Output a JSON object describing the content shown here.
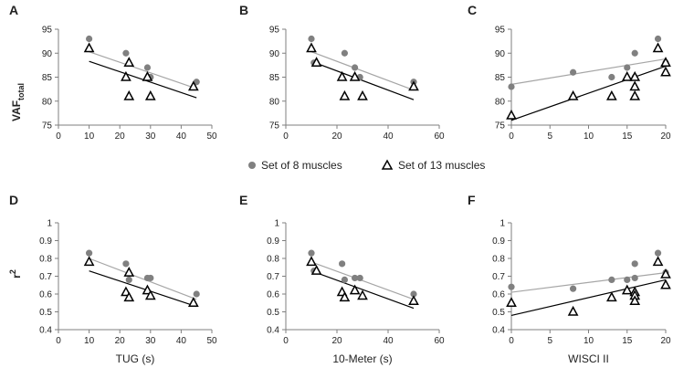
{
  "legend": {
    "series8_label": "Set of 8 muscles",
    "series13_label": "Set of 13 muscles"
  },
  "colors": {
    "series8": "#808080",
    "series13": "#000000",
    "line8": "#a6a6a6",
    "line13": "#000000",
    "axis": "#7f7f7f"
  },
  "ylabels": {
    "top_main": "VAF",
    "top_sub": "total",
    "bottom_main": "r",
    "bottom_sup": "2"
  },
  "chart_data": [
    {
      "id": "A",
      "type": "scatter",
      "row": "top",
      "xlim": [
        0,
        50
      ],
      "xticks": [
        0,
        10,
        20,
        30,
        40,
        50
      ],
      "ylim": [
        75,
        95
      ],
      "yticks": [
        75,
        80,
        85,
        90,
        95
      ],
      "xlabel": "",
      "ylabel": "VAF_total",
      "series": [
        {
          "name": "Set of 8 muscles",
          "marker": "circle",
          "points": [
            [
              10,
              93
            ],
            [
              22,
              90
            ],
            [
              29,
              87
            ],
            [
              30,
              85
            ],
            [
              45,
              84
            ]
          ],
          "trend": [
            [
              10,
              90.3
            ],
            [
              45,
              82.6
            ]
          ]
        },
        {
          "name": "Set of 13 muscles",
          "marker": "triangle",
          "points": [
            [
              10,
              91
            ],
            [
              22,
              85
            ],
            [
              23,
              88
            ],
            [
              23,
              81
            ],
            [
              29,
              85
            ],
            [
              30,
              81
            ],
            [
              44,
              83
            ]
          ],
          "trend": [
            [
              10,
              88.3
            ],
            [
              45,
              80.7
            ]
          ]
        }
      ]
    },
    {
      "id": "B",
      "type": "scatter",
      "row": "top",
      "xlim": [
        0,
        60
      ],
      "xticks": [
        0,
        20,
        40,
        60
      ],
      "ylim": [
        75,
        95
      ],
      "yticks": [
        75,
        80,
        85,
        90,
        95
      ],
      "xlabel": "",
      "ylabel": "",
      "series": [
        {
          "name": "Set of 8 muscles",
          "marker": "circle",
          "points": [
            [
              10,
              93
            ],
            [
              11,
              88
            ],
            [
              23,
              90
            ],
            [
              27,
              87
            ],
            [
              29,
              85
            ],
            [
              50,
              84
            ]
          ],
          "trend": [
            [
              10,
              90.3
            ],
            [
              50,
              82.3
            ]
          ]
        },
        {
          "name": "Set of 13 muscles",
          "marker": "triangle",
          "points": [
            [
              10,
              91
            ],
            [
              12,
              88
            ],
            [
              22,
              85
            ],
            [
              23,
              81
            ],
            [
              27,
              85
            ],
            [
              30,
              81
            ],
            [
              50,
              83
            ]
          ],
          "trend": [
            [
              10,
              88.3
            ],
            [
              50,
              80.3
            ]
          ]
        }
      ]
    },
    {
      "id": "C",
      "type": "scatter",
      "row": "top",
      "xlim": [
        0,
        20
      ],
      "xticks": [
        0,
        5,
        10,
        15,
        20
      ],
      "ylim": [
        75,
        95
      ],
      "yticks": [
        75,
        80,
        85,
        90,
        95
      ],
      "xlabel": "",
      "ylabel": "",
      "series": [
        {
          "name": "Set of 8 muscles",
          "marker": "circle",
          "points": [
            [
              0,
              83
            ],
            [
              8,
              86
            ],
            [
              13,
              85
            ],
            [
              15,
              87
            ],
            [
              16,
              90
            ],
            [
              16,
              85
            ],
            [
              19,
              93
            ],
            [
              20,
              88
            ]
          ],
          "trend": [
            [
              0,
              83.5
            ],
            [
              20,
              88.8
            ]
          ]
        },
        {
          "name": "Set of 13 muscles",
          "marker": "triangle",
          "points": [
            [
              0,
              77
            ],
            [
              8,
              81
            ],
            [
              13,
              81
            ],
            [
              15,
              85
            ],
            [
              16,
              85
            ],
            [
              16,
              83
            ],
            [
              16,
              81
            ],
            [
              19,
              91
            ],
            [
              20,
              88
            ],
            [
              20,
              86
            ]
          ],
          "trend": [
            [
              0,
              76.0
            ],
            [
              20,
              87.3
            ]
          ]
        }
      ]
    },
    {
      "id": "D",
      "type": "scatter",
      "row": "bottom",
      "xlim": [
        0,
        50
      ],
      "xticks": [
        0,
        10,
        20,
        30,
        40,
        50
      ],
      "ylim": [
        0.4,
        1.0
      ],
      "yticks": [
        0.4,
        0.5,
        0.6,
        0.7,
        0.8,
        0.9,
        1.0
      ],
      "xlabel": "TUG (s)",
      "ylabel": "r2",
      "series": [
        {
          "name": "Set of 8 muscles",
          "marker": "circle",
          "points": [
            [
              10,
              0.83
            ],
            [
              22,
              0.77
            ],
            [
              23,
              0.68
            ],
            [
              29,
              0.69
            ],
            [
              30,
              0.69
            ],
            [
              45,
              0.6
            ]
          ],
          "trend": [
            [
              10,
              0.8
            ],
            [
              45,
              0.57
            ]
          ]
        },
        {
          "name": "Set of 13 muscles",
          "marker": "triangle",
          "points": [
            [
              10,
              0.78
            ],
            [
              22,
              0.61
            ],
            [
              23,
              0.72
            ],
            [
              23,
              0.58
            ],
            [
              29,
              0.62
            ],
            [
              30,
              0.59
            ],
            [
              44,
              0.55
            ]
          ],
          "trend": [
            [
              10,
              0.73
            ],
            [
              45,
              0.53
            ]
          ]
        }
      ]
    },
    {
      "id": "E",
      "type": "scatter",
      "row": "bottom",
      "xlim": [
        0,
        60
      ],
      "xticks": [
        0,
        20,
        40,
        60
      ],
      "ylim": [
        0.4,
        1.0
      ],
      "yticks": [
        0.4,
        0.5,
        0.6,
        0.7,
        0.8,
        0.9,
        1.0
      ],
      "xlabel": "10-Meter (s)",
      "ylabel": "",
      "series": [
        {
          "name": "Set of 8 muscles",
          "marker": "circle",
          "points": [
            [
              10,
              0.83
            ],
            [
              11,
              0.73
            ],
            [
              22,
              0.77
            ],
            [
              23,
              0.68
            ],
            [
              27,
              0.69
            ],
            [
              29,
              0.69
            ],
            [
              50,
              0.6
            ]
          ],
          "trend": [
            [
              10,
              0.78
            ],
            [
              50,
              0.57
            ]
          ]
        },
        {
          "name": "Set of 13 muscles",
          "marker": "triangle",
          "points": [
            [
              10,
              0.78
            ],
            [
              12,
              0.73
            ],
            [
              22,
              0.61
            ],
            [
              23,
              0.58
            ],
            [
              27,
              0.62
            ],
            [
              30,
              0.59
            ],
            [
              50,
              0.56
            ]
          ],
          "trend": [
            [
              10,
              0.73
            ],
            [
              50,
              0.52
            ]
          ]
        }
      ]
    },
    {
      "id": "F",
      "type": "scatter",
      "row": "bottom",
      "xlim": [
        0,
        20
      ],
      "xticks": [
        0,
        5,
        10,
        15,
        20
      ],
      "ylim": [
        0.4,
        1.0
      ],
      "yticks": [
        0.4,
        0.5,
        0.6,
        0.7,
        0.8,
        0.9,
        1.0
      ],
      "xlabel": "WISCI II",
      "ylabel": "",
      "series": [
        {
          "name": "Set of 8 muscles",
          "marker": "circle",
          "points": [
            [
              0,
              0.64
            ],
            [
              8,
              0.63
            ],
            [
              13,
              0.68
            ],
            [
              15,
              0.68
            ],
            [
              16,
              0.77
            ],
            [
              16,
              0.69
            ],
            [
              19,
              0.83
            ],
            [
              20,
              0.72
            ]
          ],
          "trend": [
            [
              0,
              0.61
            ],
            [
              20,
              0.72
            ]
          ]
        },
        {
          "name": "Set of 13 muscles",
          "marker": "triangle",
          "points": [
            [
              0,
              0.55
            ],
            [
              8,
              0.5
            ],
            [
              13,
              0.58
            ],
            [
              15,
              0.62
            ],
            [
              16,
              0.61
            ],
            [
              16,
              0.59
            ],
            [
              16,
              0.56
            ],
            [
              19,
              0.78
            ],
            [
              20,
              0.71
            ],
            [
              20,
              0.65
            ]
          ],
          "trend": [
            [
              0,
              0.48
            ],
            [
              20,
              0.68
            ]
          ]
        }
      ]
    }
  ]
}
